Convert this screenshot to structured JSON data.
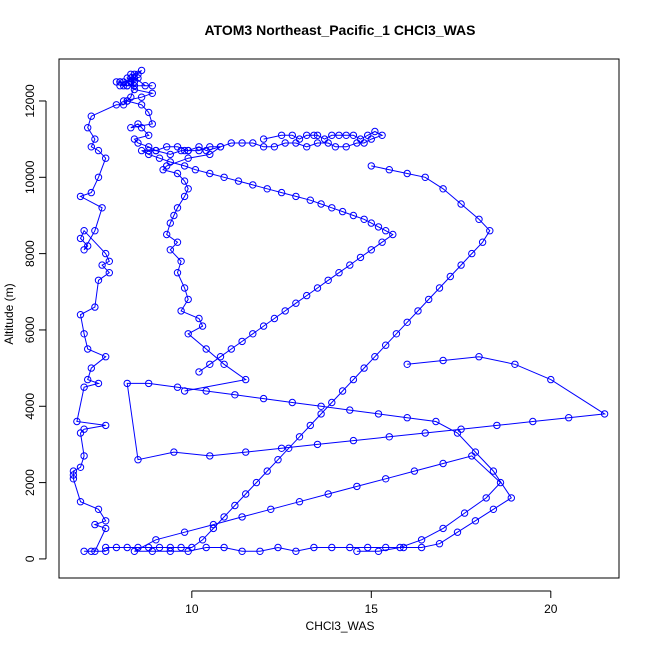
{
  "chart_data": {
    "type": "line",
    "title": "ATOM3 Northeast_Pacific_1 CHCl3_WAS",
    "xlabel": "CHCl3_WAS",
    "ylabel": "Altitude (m)",
    "xlim": [
      6.3,
      21.9
    ],
    "ylim": [
      -500,
      13100
    ],
    "xticks": [
      10,
      15,
      20
    ],
    "yticks": [
      0,
      2000,
      4000,
      6000,
      8000,
      10000,
      12000
    ],
    "grid": false,
    "legend": "none",
    "colors": {
      "series": "#0000ff",
      "axes": "#000000",
      "background": "#ffffff"
    },
    "marker": "open-circle",
    "series": [
      {
        "x": [
          7.0,
          7.2,
          7.6,
          7.3,
          7.6,
          7.3,
          7.6,
          7.4,
          6.9,
          6.7,
          6.7,
          6.7,
          6.9,
          7.0,
          6.9,
          7.0,
          7.6,
          6.8,
          7.0,
          7.4,
          7.1,
          7.2,
          7.6,
          7.1,
          7.0,
          6.9,
          7.3,
          7.4,
          7.7,
          7.5,
          7.7,
          7.6,
          7.0,
          6.9,
          7.1,
          7.0,
          7.3,
          7.5,
          6.9,
          7.2,
          7.4,
          7.6,
          7.4,
          7.2,
          7.3,
          7.1,
          7.2,
          7.9,
          8.1,
          8.2,
          8.1,
          8.6,
          8.9,
          8.4,
          8.3,
          8.1,
          8.0,
          8.2,
          8.4,
          8.3,
          8.0,
          7.9,
          8.0,
          8.2,
          8.4,
          8.3,
          8.5,
          8.1,
          8.4,
          8.2,
          8.3,
          8.4,
          8.6,
          8.5,
          8.3,
          8.7,
          8.9,
          8.4,
          8.3,
          8.2,
          8.6,
          8.8,
          8.9,
          8.3,
          8.5,
          8.6,
          8.8,
          8.4,
          8.5,
          8.8,
          9.0,
          9.4,
          9.7,
          9.8,
          9.9,
          10.2,
          10.4,
          10.8,
          10.5,
          9.9,
          9.3,
          9.2,
          9.6,
          9.8,
          9.9,
          9.8,
          9.6,
          9.5,
          9.4,
          9.3,
          9.6,
          9.4,
          9.7,
          9.6,
          9.8,
          9.9,
          9.7,
          10.2,
          10.3,
          9.9,
          10.4,
          10.9,
          11.5,
          9.8
        ],
        "y": [
          200,
          200,
          200,
          200,
          800,
          900,
          1000,
          1300,
          1500,
          2100,
          2200,
          2300,
          2400,
          2700,
          3300,
          3400,
          3500,
          3600,
          4500,
          4600,
          4700,
          5000,
          5300,
          5500,
          5900,
          6400,
          6600,
          7300,
          7500,
          7700,
          7800,
          8000,
          8600,
          8400,
          8200,
          8100,
          8600,
          9200,
          9500,
          9600,
          10000,
          10500,
          10700,
          10800,
          11000,
          11300,
          11600,
          11900,
          11900,
          12000,
          12000,
          12100,
          12200,
          12300,
          12600,
          12400,
          12400,
          12400,
          12500,
          12500,
          12500,
          12500,
          12500,
          12400,
          12400,
          12500,
          12600,
          12500,
          12600,
          12600,
          12500,
          12700,
          12800,
          12700,
          12700,
          12400,
          12400,
          12400,
          12100,
          12000,
          11900,
          11700,
          11400,
          11300,
          11400,
          11300,
          11100,
          11000,
          10900,
          10800,
          10700,
          10600,
          10700,
          10700,
          10700,
          10800,
          10700,
          10800,
          10600,
          10500,
          10300,
          10200,
          10100,
          9900,
          9700,
          9500,
          9200,
          9000,
          8800,
          8500,
          8300,
          8100,
          7800,
          7500,
          7100,
          6800,
          6500,
          6300,
          6100,
          5900,
          5500,
          5100,
          4700,
          4400
        ]
      },
      {
        "x": [
          12.0,
          12.5,
          12.8,
          13.0,
          13.2,
          13.4,
          13.5,
          13.7,
          13.9,
          14.1,
          14.3,
          14.5,
          14.7,
          14.9,
          15.1,
          15.3,
          15.0,
          14.8,
          14.6,
          14.3,
          14.0,
          13.8,
          13.5,
          13.2,
          12.9,
          12.6,
          12.3,
          12.0,
          11.7,
          11.4,
          11.1,
          10.8,
          10.5,
          10.2,
          9.9,
          9.6,
          9.3,
          9.0,
          8.8,
          8.6,
          8.8,
          9.1,
          9.4,
          9.8,
          10.1,
          10.5,
          10.9,
          11.3,
          11.7,
          12.1,
          12.5,
          12.9,
          13.3,
          13.6,
          13.9,
          14.2,
          14.5,
          14.8,
          15.0,
          15.2,
          15.4,
          15.6,
          15.3,
          15.0,
          14.7,
          14.4,
          14.1,
          13.8,
          13.5,
          13.2,
          12.9,
          12.6,
          12.3,
          12.0,
          11.7,
          11.4,
          11.1,
          10.8,
          10.5,
          10.2
        ],
        "y": [
          11000,
          11100,
          11100,
          11000,
          11100,
          11100,
          11100,
          11000,
          11100,
          11100,
          11100,
          11100,
          11000,
          11100,
          11200,
          11100,
          11000,
          10900,
          10900,
          10800,
          10800,
          10900,
          10900,
          10800,
          10900,
          10900,
          10800,
          10800,
          10900,
          10900,
          10900,
          10800,
          10800,
          10700,
          10700,
          10800,
          10800,
          10700,
          10700,
          10700,
          10600,
          10500,
          10400,
          10300,
          10200,
          10100,
          10000,
          9900,
          9800,
          9700,
          9600,
          9500,
          9400,
          9300,
          9200,
          9100,
          9000,
          8900,
          8800,
          8700,
          8600,
          8500,
          8300,
          8100,
          7900,
          7700,
          7500,
          7300,
          7100,
          6900,
          6700,
          6500,
          6300,
          6100,
          5900,
          5700,
          5500,
          5300,
          5100,
          4900
        ]
      },
      {
        "x": [
          15.0,
          15.5,
          16.0,
          16.5,
          17.0,
          17.5,
          18.0,
          18.3,
          18.1,
          17.8,
          17.5,
          17.2,
          16.9,
          16.6,
          16.3,
          16.0,
          15.7,
          15.4,
          15.1,
          14.8,
          14.5,
          14.2,
          13.9,
          13.6,
          13.3,
          13.0,
          12.7,
          12.4,
          12.1,
          11.8,
          11.5,
          11.2,
          10.9,
          10.6,
          10.3,
          10.0,
          9.7,
          9.4,
          9.1,
          8.8,
          8.5,
          8.2,
          7.9,
          7.6
        ],
        "y": [
          10300,
          10200,
          10100,
          10000,
          9700,
          9300,
          8900,
          8600,
          8300,
          8000,
          7700,
          7400,
          7100,
          6800,
          6500,
          6200,
          5900,
          5600,
          5300,
          5000,
          4700,
          4400,
          4100,
          3800,
          3500,
          3200,
          2900,
          2600,
          2300,
          2000,
          1700,
          1400,
          1100,
          800,
          500,
          300,
          300,
          300,
          300,
          300,
          300,
          300,
          300,
          300
        ]
      },
      {
        "x": [
          16.0,
          17.0,
          18.0,
          19.0,
          20.0,
          21.5,
          20.5,
          19.5,
          18.5,
          17.5,
          16.5,
          15.5,
          14.5,
          13.5,
          12.5,
          11.5,
          10.5,
          9.5,
          8.5,
          8.2,
          8.8,
          9.6,
          10.4,
          11.2,
          12.0,
          12.8,
          13.6,
          14.4,
          15.2,
          16.0,
          16.8,
          17.4,
          17.9,
          18.4,
          18.9,
          18.4,
          17.9,
          17.4,
          16.9,
          16.4,
          15.9,
          15.4,
          14.9,
          14.4,
          13.9,
          13.4,
          12.9,
          12.4,
          11.9,
          11.4,
          10.9,
          10.4,
          9.9,
          9.4,
          8.9,
          8.4,
          9.0,
          9.8,
          10.6,
          11.4,
          12.2,
          13.0,
          13.8,
          14.6,
          15.4,
          16.2,
          17.0,
          17.8,
          18.6,
          18.2,
          17.6,
          17.0,
          16.4,
          15.8,
          15.2,
          14.6
        ],
        "y": [
          5100,
          5200,
          5300,
          5100,
          4700,
          3800,
          3700,
          3600,
          3500,
          3400,
          3300,
          3200,
          3100,
          3000,
          2900,
          2800,
          2700,
          2800,
          2600,
          4600,
          4600,
          4500,
          4400,
          4300,
          4200,
          4100,
          4000,
          3900,
          3800,
          3700,
          3600,
          3300,
          2800,
          2300,
          1600,
          1300,
          1000,
          700,
          400,
          300,
          300,
          300,
          300,
          300,
          300,
          300,
          200,
          300,
          200,
          200,
          300,
          300,
          200,
          200,
          200,
          200,
          500,
          700,
          900,
          1100,
          1300,
          1500,
          1700,
          1900,
          2100,
          2300,
          2500,
          2700,
          2000,
          1600,
          1200,
          800,
          500,
          300,
          200,
          200
        ]
      }
    ]
  }
}
